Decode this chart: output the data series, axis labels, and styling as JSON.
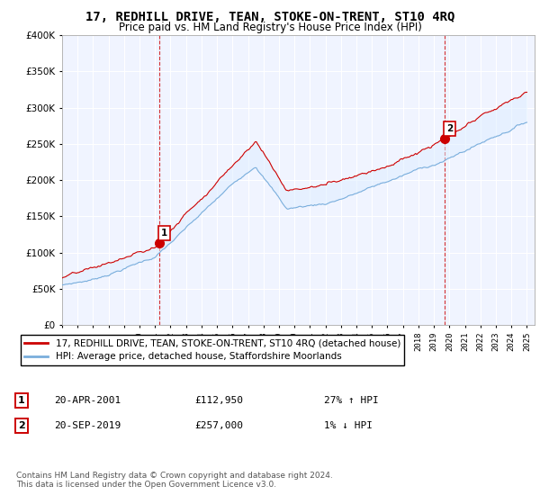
{
  "title": "17, REDHILL DRIVE, TEAN, STOKE-ON-TRENT, ST10 4RQ",
  "subtitle": "Price paid vs. HM Land Registry's House Price Index (HPI)",
  "legend_line1": "17, REDHILL DRIVE, TEAN, STOKE-ON-TRENT, ST10 4RQ (detached house)",
  "legend_line2": "HPI: Average price, detached house, Staffordshire Moorlands",
  "annotation1_label": "1",
  "annotation1_date": "20-APR-2001",
  "annotation1_price": "£112,950",
  "annotation1_hpi": "27% ↑ HPI",
  "annotation2_label": "2",
  "annotation2_date": "20-SEP-2019",
  "annotation2_price": "£257,000",
  "annotation2_hpi": "1% ↓ HPI",
  "footnote": "Contains HM Land Registry data © Crown copyright and database right 2024.\nThis data is licensed under the Open Government Licence v3.0.",
  "ylim": [
    0,
    400000
  ],
  "ytick_step": 50000,
  "xmin": 1995,
  "xmax": 2025,
  "red_color": "#cc0000",
  "blue_color": "#7aaedc",
  "blue_fill": "#ddeeff",
  "title_fontsize": 10,
  "subtitle_fontsize": 8.5
}
